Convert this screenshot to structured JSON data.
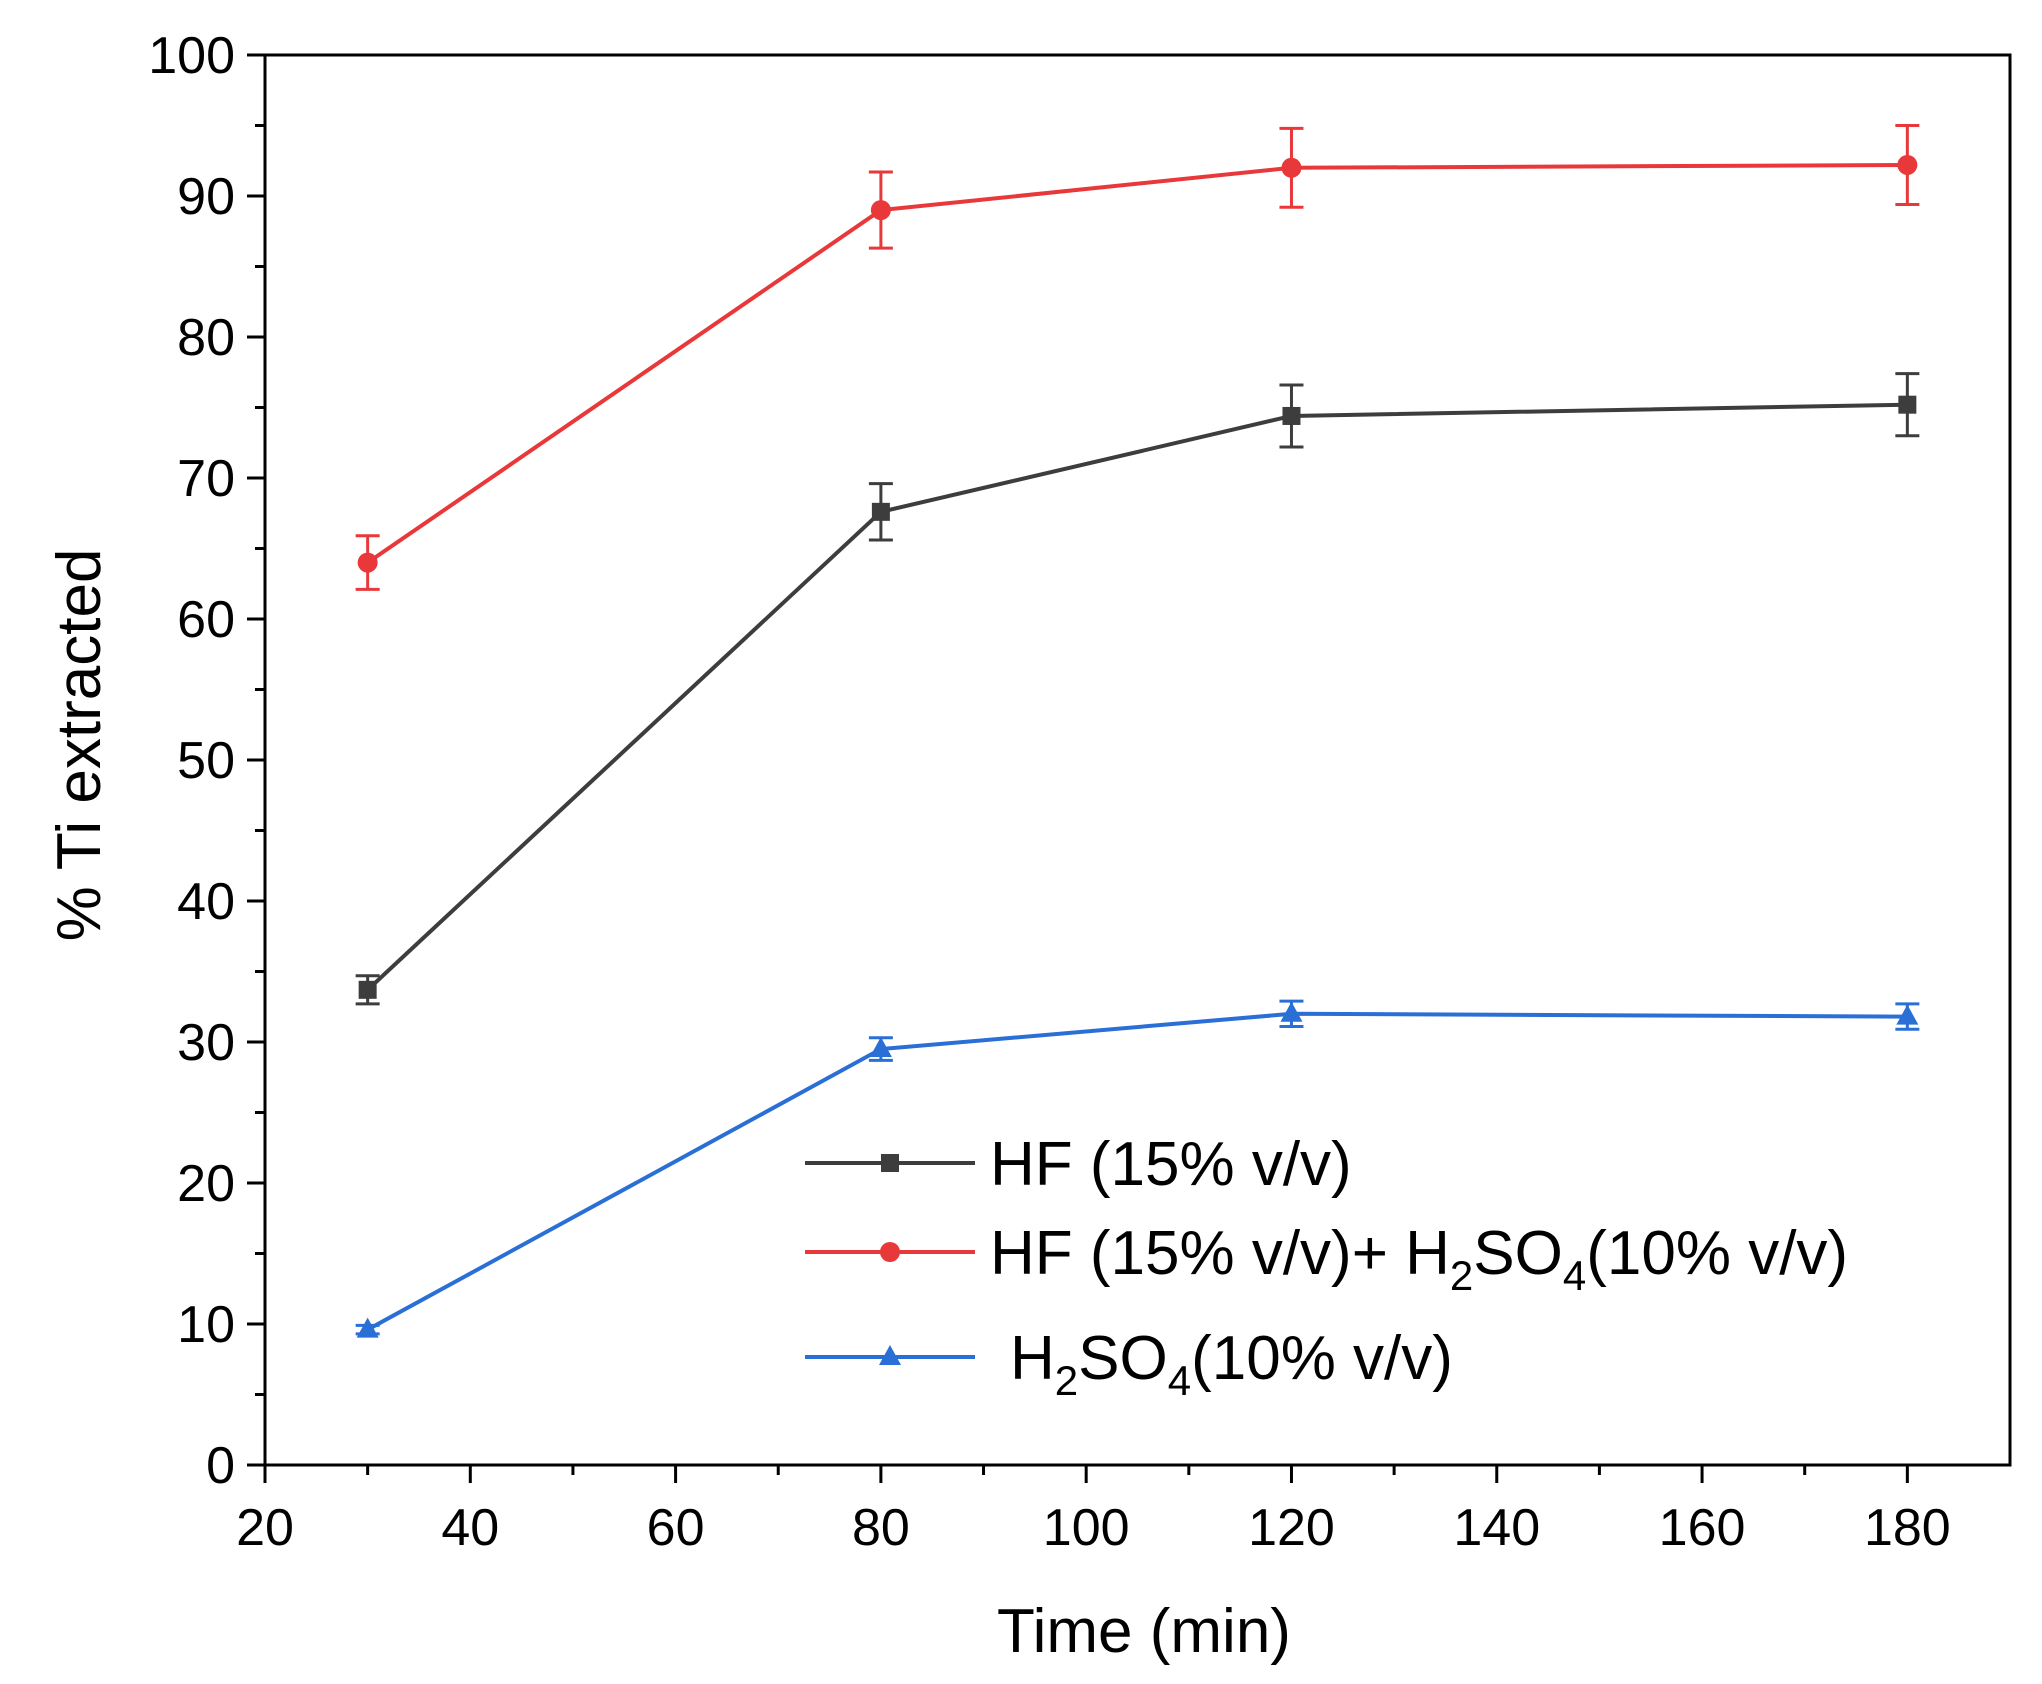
{
  "chart_data": {
    "type": "line",
    "title": "",
    "xlabel": "Time (min)",
    "ylabel": "% Ti extracted",
    "xlim": [
      20,
      190
    ],
    "ylim": [
      0,
      100
    ],
    "xticks": [
      20,
      40,
      60,
      80,
      100,
      120,
      140,
      160,
      180
    ],
    "yticks": [
      0,
      10,
      20,
      30,
      40,
      50,
      60,
      70,
      80,
      90,
      100
    ],
    "x": [
      30,
      80,
      120,
      180
    ],
    "grid": false,
    "legend_position": "bottom-right",
    "series": [
      {
        "name": "HF (15% v/v)",
        "legend": {
          "pre": "HF (15% v/v)",
          "sub1": "",
          "mid": "",
          "sub2": "",
          "post": ""
        },
        "color": "#3d3d3d",
        "marker": "square",
        "values": [
          33.7,
          67.6,
          74.4,
          75.2
        ],
        "errors": [
          1.0,
          2.0,
          2.2,
          2.2
        ]
      },
      {
        "name": "HF (15% v/v)+ H2SO4(10% v/v)",
        "legend": {
          "pre": "HF (15% v/v)+ H",
          "sub1": "2",
          "mid": "SO",
          "sub2": "4",
          "post": "(10% v/v)"
        },
        "color": "#e8383a",
        "marker": "circle",
        "values": [
          64.0,
          89.0,
          92.0,
          92.2
        ],
        "errors": [
          1.9,
          2.7,
          2.8,
          2.8
        ]
      },
      {
        "name": "H2SO4(10% v/v)",
        "legend": {
          "pre": "H",
          "sub1": "2",
          "mid": "SO",
          "sub2": "4",
          "post": "(10% v/v)"
        },
        "color": "#2a6fd6",
        "marker": "triangle",
        "values": [
          9.6,
          29.5,
          32.0,
          31.8
        ],
        "errors": [
          0.3,
          0.8,
          0.9,
          0.9
        ]
      }
    ]
  }
}
